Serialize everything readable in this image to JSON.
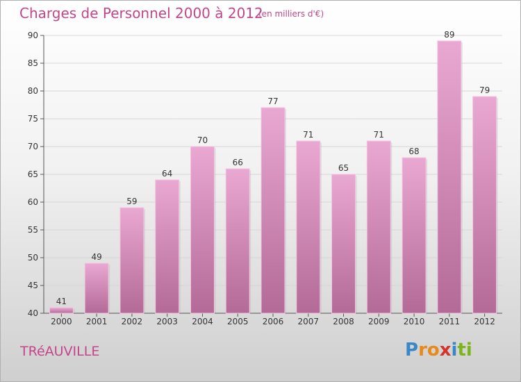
{
  "header": {
    "title": "Charges de Personnel 2000 à 2012",
    "subtitle": "(en milliers d'€)"
  },
  "footer": {
    "city": "TRéAUVILLE",
    "logo": "Proxiti",
    "logo_letters": [
      {
        "ch": "P",
        "color": "#3a87c8"
      },
      {
        "ch": "r",
        "color": "#e8891c"
      },
      {
        "ch": "o",
        "color": "#e8891c"
      },
      {
        "ch": "x",
        "color": "#d2342a"
      },
      {
        "ch": "i",
        "color": "#3a87c8"
      },
      {
        "ch": "t",
        "color": "#7ab51d"
      },
      {
        "ch": "i",
        "color": "#7ab51d"
      }
    ]
  },
  "colors": {
    "accent": "#c3458a",
    "bar_top": "#e9a8d2",
    "bar_bottom": "#b36a96",
    "bar_edge": "#f2c6e0"
  },
  "chart_data": {
    "type": "bar",
    "title": "Charges de Personnel 2000 à 2012",
    "subtitle": "(en milliers d'€)",
    "categories": [
      "2000",
      "2001",
      "2002",
      "2003",
      "2004",
      "2005",
      "2006",
      "2007",
      "2008",
      "2009",
      "2010",
      "2011",
      "2012"
    ],
    "values": [
      41,
      49,
      59,
      64,
      70,
      66,
      77,
      71,
      65,
      71,
      68,
      89,
      79
    ],
    "xlabel": "",
    "ylabel": "",
    "ylim": [
      40,
      90
    ],
    "yticks": [
      40,
      45,
      50,
      55,
      60,
      65,
      70,
      75,
      80,
      85,
      90
    ],
    "grid": true,
    "data_labels": true
  }
}
